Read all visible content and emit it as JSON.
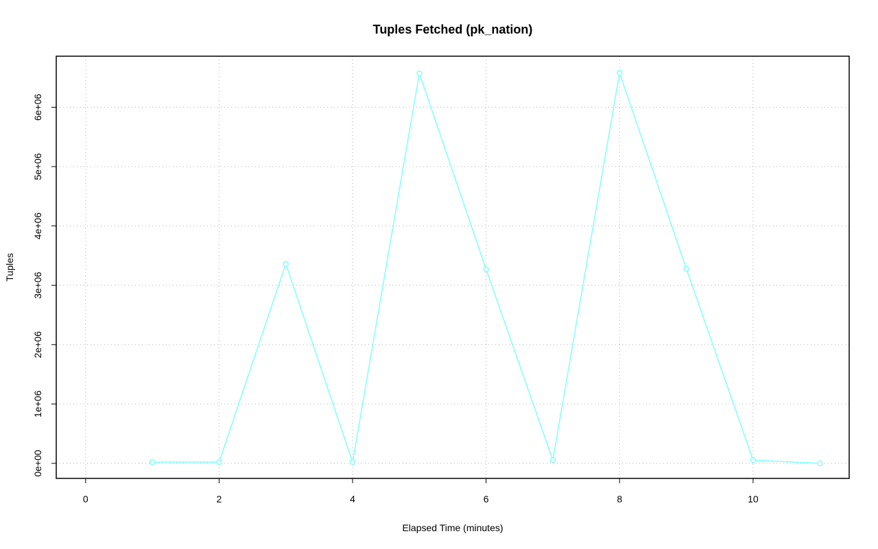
{
  "chart_data": {
    "type": "line",
    "title": "Tuples Fetched (pk_nation)",
    "x_label": "Elapsed Time (minutes)",
    "y_label": "Tuples",
    "series": [
      {
        "name": "pk_nation",
        "color": "#7fffff",
        "x": [
          1,
          2,
          3,
          4,
          5,
          6,
          7,
          8,
          9,
          10,
          11
        ],
        "values": [
          20000,
          20000,
          3360000,
          20000,
          6570000,
          3270000,
          55000,
          6580000,
          3280000,
          55000,
          0
        ]
      }
    ],
    "xlim": [
      -0.44,
      11.44
    ],
    "xticks": [
      0,
      2,
      4,
      6,
      8,
      10
    ],
    "ylim": [
      -254000,
      6860000
    ],
    "yticks": [
      {
        "value": 0,
        "label": "0e+00"
      },
      {
        "value": 1000000,
        "label": "1e+06"
      },
      {
        "value": 2000000,
        "label": "2e+06"
      },
      {
        "value": 3000000,
        "label": "3e+06"
      },
      {
        "value": 4000000,
        "label": "4e+06"
      },
      {
        "value": 5000000,
        "label": "5e+06"
      },
      {
        "value": 6000000,
        "label": "6e+06"
      }
    ],
    "grid": true
  }
}
